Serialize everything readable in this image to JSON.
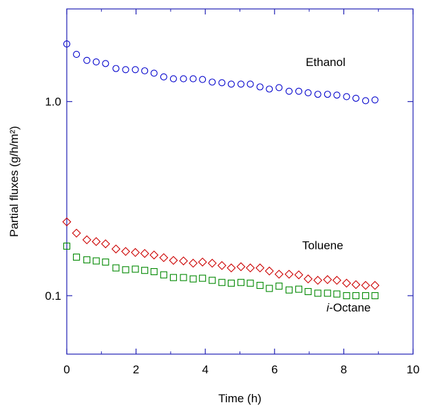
{
  "chart_data": {
    "type": "scatter",
    "title": "",
    "xlabel": "Time (h)",
    "ylabel": "Partial fluxes (g/h/m²)",
    "xlim": [
      0,
      10
    ],
    "ylim": [
      0.05,
      3.0
    ],
    "yscale": "log",
    "grid": false,
    "x_ticks": [
      0,
      2,
      4,
      6,
      8,
      10
    ],
    "x_tick_labels": [
      "0",
      "2",
      "4",
      "6",
      "8",
      "10"
    ],
    "y_ticks": [
      1.0,
      0.1
    ],
    "y_tick_labels": [
      "1.0",
      "0.1"
    ],
    "axis_color": "#1f1fb4",
    "series": [
      {
        "name": "Ethanol",
        "label_prefix": "",
        "label_italic_part": "",
        "marker": "circle",
        "color": "#0000cc",
        "label_at": [
          6.9,
          1.6
        ],
        "x": [
          0.0,
          0.28,
          0.58,
          0.85,
          1.12,
          1.42,
          1.7,
          1.98,
          2.25,
          2.52,
          2.8,
          3.08,
          3.37,
          3.65,
          3.92,
          4.2,
          4.48,
          4.75,
          5.03,
          5.3,
          5.58,
          5.85,
          6.13,
          6.42,
          6.7,
          6.97,
          7.25,
          7.53,
          7.8,
          8.08,
          8.35,
          8.63,
          8.9
        ],
        "y": [
          1.98,
          1.75,
          1.63,
          1.6,
          1.57,
          1.48,
          1.46,
          1.46,
          1.44,
          1.4,
          1.34,
          1.31,
          1.31,
          1.31,
          1.3,
          1.26,
          1.25,
          1.23,
          1.23,
          1.23,
          1.19,
          1.16,
          1.18,
          1.13,
          1.13,
          1.11,
          1.09,
          1.09,
          1.08,
          1.06,
          1.04,
          1.01,
          1.02
        ]
      },
      {
        "name": "Toluene",
        "label_prefix": "",
        "label_italic_part": "",
        "marker": "diamond",
        "color": "#cc0000",
        "label_at": [
          6.8,
          0.182
        ],
        "x": [
          0.0,
          0.28,
          0.58,
          0.85,
          1.12,
          1.42,
          1.7,
          1.98,
          2.25,
          2.52,
          2.8,
          3.08,
          3.37,
          3.65,
          3.92,
          4.2,
          4.48,
          4.75,
          5.03,
          5.3,
          5.58,
          5.85,
          6.13,
          6.42,
          6.7,
          6.97,
          7.25,
          7.53,
          7.8,
          8.08,
          8.35,
          8.63,
          8.9
        ],
        "y": [
          0.24,
          0.21,
          0.194,
          0.19,
          0.185,
          0.174,
          0.169,
          0.167,
          0.165,
          0.162,
          0.157,
          0.152,
          0.151,
          0.147,
          0.149,
          0.147,
          0.143,
          0.139,
          0.141,
          0.139,
          0.139,
          0.134,
          0.129,
          0.129,
          0.128,
          0.122,
          0.12,
          0.121,
          0.12,
          0.116,
          0.114,
          0.113,
          0.113
        ]
      },
      {
        "name": "i-Octane",
        "label_prefix": "i",
        "label_italic_part": "i",
        "marker": "square",
        "color": "#008800",
        "label_at": [
          7.5,
          0.087
        ],
        "x": [
          0.0,
          0.28,
          0.58,
          0.85,
          1.12,
          1.42,
          1.7,
          1.98,
          2.25,
          2.52,
          2.8,
          3.08,
          3.37,
          3.65,
          3.92,
          4.2,
          4.48,
          4.75,
          5.03,
          5.3,
          5.58,
          5.85,
          6.13,
          6.42,
          6.7,
          6.97,
          7.25,
          7.53,
          7.8,
          8.08,
          8.35,
          8.63,
          8.9
        ],
        "y": [
          0.18,
          0.158,
          0.153,
          0.151,
          0.149,
          0.139,
          0.136,
          0.137,
          0.135,
          0.133,
          0.128,
          0.124,
          0.124,
          0.122,
          0.123,
          0.12,
          0.117,
          0.116,
          0.117,
          0.116,
          0.113,
          0.109,
          0.112,
          0.107,
          0.108,
          0.105,
          0.103,
          0.103,
          0.102,
          0.1,
          0.1,
          0.1,
          0.1
        ]
      }
    ]
  }
}
